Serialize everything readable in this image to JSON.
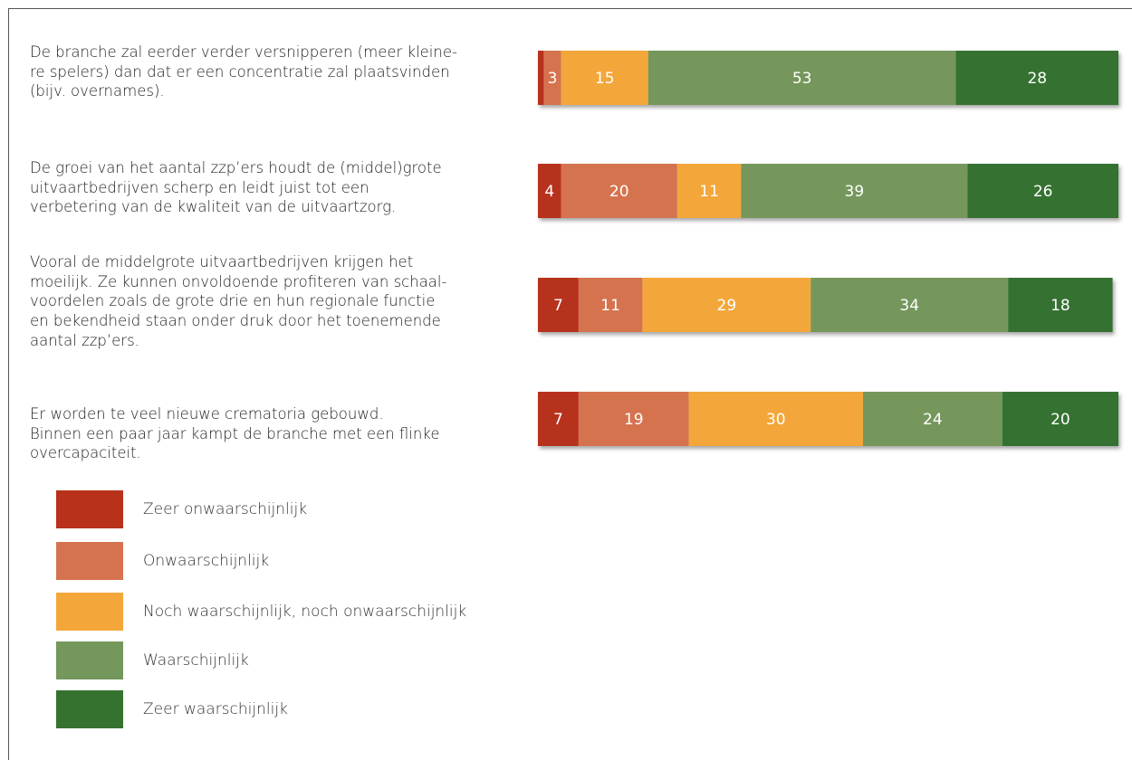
{
  "chart_data": {
    "type": "stacked-barh",
    "categories": [
      "De branche zal eerder verder versnipperen (meer kleine-\nre spelers) dan dat er een concentratie zal plaatsvinden\n(bijv. overnames).",
      "De groei van het aantal zzp’ers houdt de (middel)grote\nuitvaartbedrijven scherp en leidt juist tot een\nverbetering van de kwaliteit van de uitvaartzorg.",
      "Vooral de middelgrote uitvaartbedrijven krijgen het\nmoeilijk. Ze kunnen onvoldoende profiteren van schaal-\nvoordelen zoals de grote drie en hun regionale functie\nen bekendheid staan onder druk door het toenemende\naantal zzp’ers.",
      "Er worden te veel nieuwe crematoria gebouwd.\nBinnen een paar jaar kampt de branche met een flinke\novercapaciteit."
    ],
    "series": [
      {
        "name": "Zeer onwaarschijnlijk",
        "color": "#b7311b",
        "values": [
          1,
          4,
          7,
          7
        ],
        "value_labels": [
          null,
          "4",
          "7",
          "7"
        ]
      },
      {
        "name": "Onwaarschijnlijk",
        "color": "#d6734f",
        "values": [
          3,
          20,
          11,
          19
        ]
      },
      {
        "name": "Noch waarschijnlijk, noch onwaarschijnlijk",
        "color": "#f3a73b",
        "values": [
          15,
          11,
          29,
          30
        ]
      },
      {
        "name": "Waarschijnlijk",
        "color": "#74975b",
        "values": [
          53,
          39,
          34,
          24
        ]
      },
      {
        "name": "Zeer waarschijnlijk",
        "color": "#357230",
        "values": [
          28,
          26,
          18,
          20
        ]
      }
    ],
    "xlim": [
      0,
      100
    ]
  }
}
